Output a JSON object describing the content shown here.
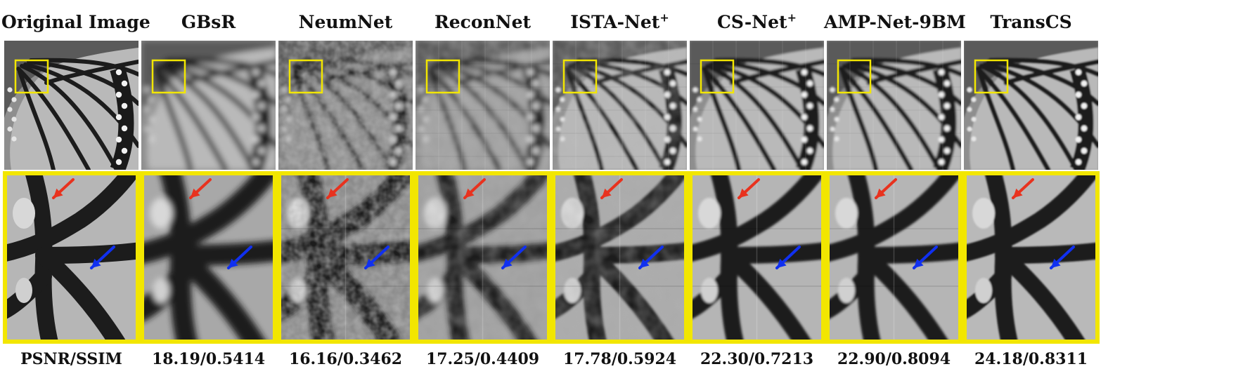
{
  "columns": [
    {
      "method": "Original Image",
      "sup": "",
      "metric": "PSNR/SSIM",
      "style": "orig"
    },
    {
      "method": "GBsR",
      "sup": "",
      "metric": "18.19/0.5414",
      "style": "blur"
    },
    {
      "method": "NeumNet",
      "sup": "",
      "metric": "16.16/0.3462",
      "style": "noise"
    },
    {
      "method": "ReconNet",
      "sup": "",
      "metric": "17.25/0.4409",
      "style": "blocky"
    },
    {
      "method": "ISTA-Net",
      "sup": "+",
      "metric": "17.78/0.5924",
      "style": "artifact"
    },
    {
      "method": "CS-Net",
      "sup": "+",
      "metric": "22.30/0.7213",
      "style": "smooth"
    },
    {
      "method": "AMP-Net-9BM",
      "sup": "",
      "metric": "22.90/0.8094",
      "style": "smooth"
    },
    {
      "method": "TransCS",
      "sup": "",
      "metric": "24.18/0.8311",
      "style": "sharp"
    }
  ],
  "colors": {
    "highlight_box": "#f2e600",
    "arrow_red": "#e8321e",
    "arrow_blue": "#1030f0",
    "wing_light": "#b9b9b9",
    "vein_dark": "#1c1c1c"
  },
  "icons": {
    "red_arrow": "arrow-red-icon",
    "blue_arrow": "arrow-blue-icon"
  }
}
